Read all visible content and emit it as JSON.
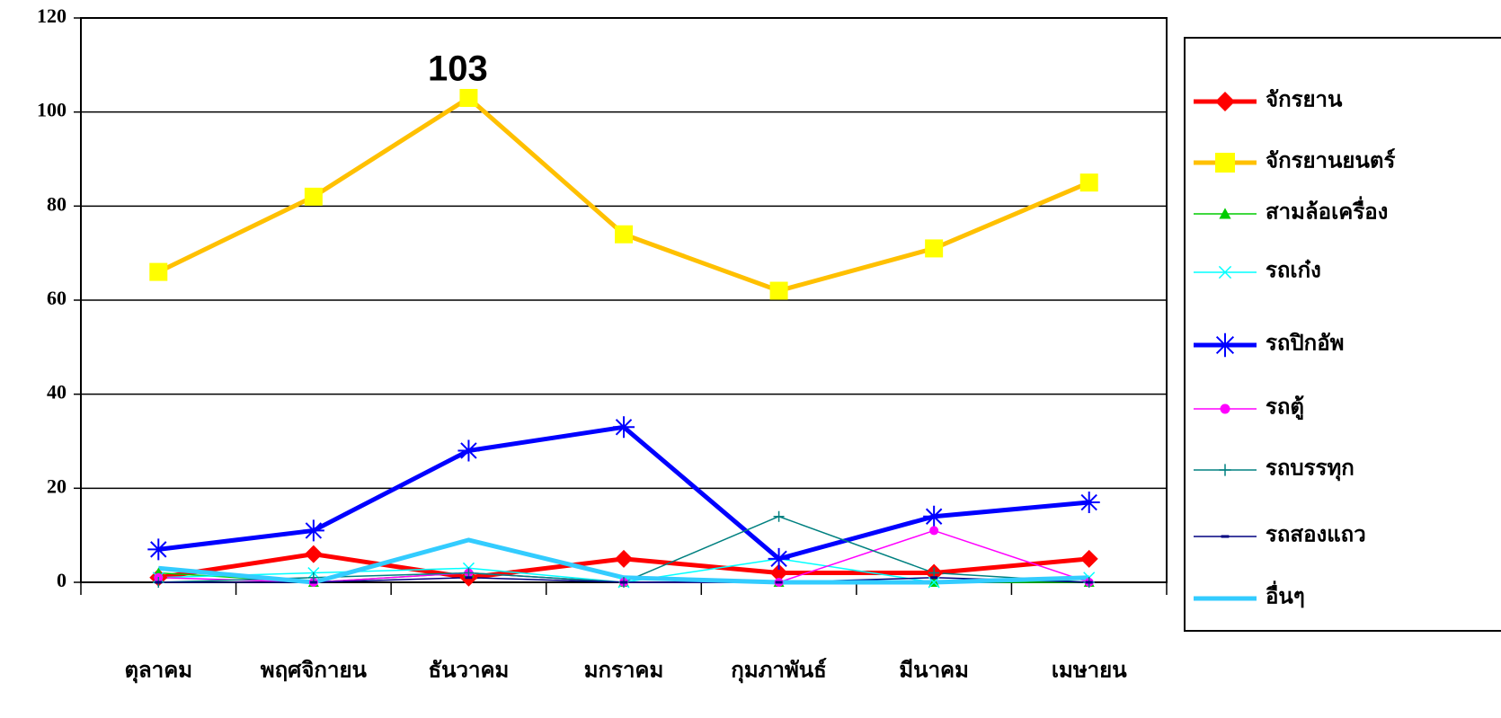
{
  "chart_data": {
    "type": "line",
    "categories": [
      "ตุลาคม",
      "พฤศจิกายน",
      "ธันวาคม",
      "มกราคม",
      "กุมภาพันธ์",
      "มีนาคม",
      "เมษายน"
    ],
    "series": [
      {
        "name": "จักรยาน",
        "color": "#ff0000",
        "marker": "diamond",
        "line_width": 5,
        "values": [
          1,
          6,
          1,
          5,
          2,
          2,
          5
        ]
      },
      {
        "name": "จักรยานยนตร์",
        "color": "#ffc000",
        "marker_color": "#ffff00",
        "marker": "square",
        "line_width": 5,
        "values": [
          66,
          82,
          103,
          74,
          62,
          71,
          85
        ],
        "data_labels": [
          2
        ]
      },
      {
        "name": "สามล้อเครื่อง",
        "color": "#00cc00",
        "marker": "triangle",
        "line_width": 1.5,
        "values": [
          2,
          0,
          2,
          0,
          0,
          0,
          0
        ]
      },
      {
        "name": "รถเก๋ง",
        "color": "#00ffff",
        "marker": "x",
        "line_width": 1.5,
        "values": [
          1,
          2,
          3,
          0,
          5,
          0,
          1
        ]
      },
      {
        "name": "รถปิกอัพ",
        "color": "#0000ff",
        "marker": "star",
        "line_width": 5,
        "values": [
          7,
          11,
          28,
          33,
          5,
          14,
          17
        ]
      },
      {
        "name": "รถตู้",
        "color": "#ff00ff",
        "marker": "circle",
        "line_width": 1.5,
        "values": [
          1,
          0,
          2,
          0,
          0,
          11,
          0
        ]
      },
      {
        "name": "รถบรรทุก",
        "color": "#008080",
        "marker": "plus",
        "line_width": 1.5,
        "values": [
          0,
          1,
          2,
          0,
          14,
          2,
          0
        ]
      },
      {
        "name": "รถสองแถว",
        "color": "#000080",
        "marker": "dash",
        "line_width": 1.5,
        "values": [
          0,
          0,
          1,
          0,
          0,
          1,
          0
        ]
      },
      {
        "name": "อื่นๆ",
        "color": "#33ccff",
        "marker": "none",
        "line_width": 5,
        "values": [
          3,
          0,
          9,
          1,
          0,
          0,
          1
        ]
      }
    ],
    "ylim": [
      0,
      120
    ],
    "yticks": [
      0,
      20,
      40,
      60,
      80,
      100,
      120
    ],
    "grid": true,
    "legend": "right"
  }
}
